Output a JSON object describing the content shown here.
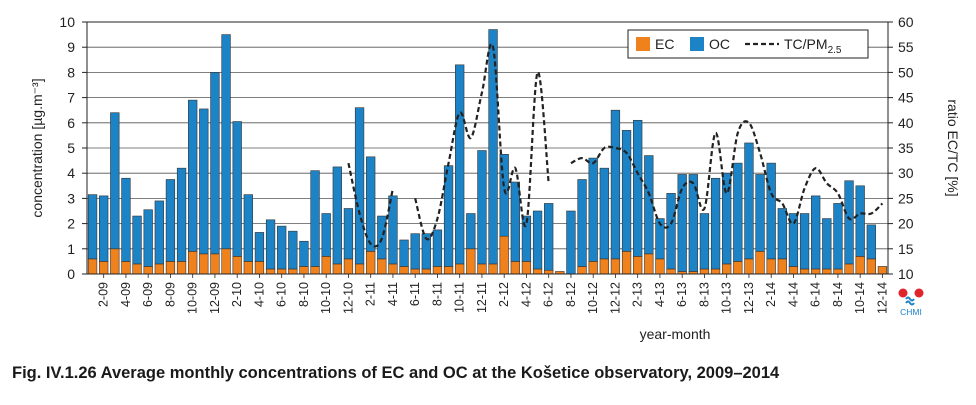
{
  "caption": "Fig. IV.1.26 Average monthly concentrations of EC and OC at the Košetice observatory, 2009–2014",
  "logo_text": "CHMI",
  "chart_data": {
    "type": "bar",
    "stacked": true,
    "xlabel": "year-month",
    "ylabel": "concentration [µg.m⁻³]",
    "y2label": "ratio EC/TC [%]",
    "ylim": [
      0,
      10
    ],
    "y2lim": [
      10,
      60
    ],
    "yticks": [
      0,
      1,
      2,
      3,
      4,
      5,
      6,
      7,
      8,
      9,
      10
    ],
    "y2ticks": [
      10,
      15,
      20,
      25,
      30,
      35,
      40,
      45,
      50,
      55,
      60
    ],
    "grid": true,
    "legend_position": "top-right",
    "categories": [
      "1-09",
      "2-09",
      "3-09",
      "4-09",
      "5-09",
      "6-09",
      "7-09",
      "8-09",
      "9-09",
      "10-09",
      "11-09",
      "12-09",
      "1-10",
      "2-10",
      "3-10",
      "4-10",
      "5-10",
      "6-10",
      "7-10",
      "8-10",
      "9-10",
      "10-10",
      "11-10",
      "12-10",
      "1-11",
      "2-11",
      "3-11",
      "4-11",
      "5-11",
      "6-11",
      "7-11",
      "8-11",
      "9-11",
      "10-11",
      "11-11",
      "12-11",
      "1-12",
      "2-12",
      "3-12",
      "4-12",
      "5-12",
      "6-12",
      "7-12",
      "8-12",
      "9-12",
      "10-12",
      "11-12",
      "12-12",
      "1-13",
      "2-13",
      "3-13",
      "4-13",
      "5-13",
      "6-13",
      "7-13",
      "8-13",
      "9-13",
      "10-13",
      "11-13",
      "12-13",
      "1-14",
      "2-14",
      "3-14",
      "4-14",
      "5-14",
      "6-14",
      "7-14",
      "8-14",
      "9-14",
      "10-14",
      "11-14",
      "12-14"
    ],
    "x_tick_labels": [
      "2-09",
      "4-09",
      "6-09",
      "8-09",
      "10-09",
      "12-09",
      "2-10",
      "4-10",
      "6-10",
      "8-10",
      "10-10",
      "12-10",
      "2-11",
      "4-11",
      "6-11",
      "8-11",
      "10-11",
      "12-11",
      "2-12",
      "4-12",
      "6-12",
      "8-12",
      "10-12",
      "12-12",
      "2-13",
      "4-13",
      "6-13",
      "8-13",
      "10-13",
      "12-13",
      "2-14",
      "4-14",
      "6-14",
      "8-14",
      "10-14",
      "12-14"
    ],
    "series": [
      {
        "name": "EC",
        "color": "#f0821e",
        "values": [
          0.6,
          0.5,
          1.0,
          0.5,
          0.4,
          0.3,
          0.4,
          0.5,
          0.5,
          0.9,
          0.8,
          0.8,
          1.0,
          0.7,
          0.5,
          0.5,
          0.2,
          0.2,
          0.2,
          0.3,
          0.3,
          0.7,
          0.4,
          0.6,
          0.4,
          0.9,
          0.6,
          0.4,
          0.3,
          0.2,
          0.2,
          0.3,
          0.3,
          0.4,
          1.0,
          0.4,
          0.4,
          1.5,
          0.5,
          0.5,
          0.2,
          0.15,
          0.1,
          null,
          0.3,
          0.5,
          0.6,
          0.6,
          0.9,
          0.7,
          0.8,
          0.6,
          0.2,
          0.1,
          0.1,
          0.2,
          0.2,
          0.4,
          0.5,
          0.6,
          0.9,
          0.6,
          0.6,
          0.3,
          0.2,
          0.2,
          0.2,
          0.2,
          0.4,
          0.7,
          0.6,
          0.3
        ]
      },
      {
        "name": "OC",
        "color": "#1c83c6",
        "values": [
          2.55,
          2.6,
          5.4,
          3.3,
          1.9,
          2.25,
          2.5,
          3.25,
          3.7,
          6.0,
          5.75,
          7.2,
          8.5,
          5.35,
          2.65,
          1.15,
          1.95,
          1.7,
          1.5,
          1.0,
          3.8,
          1.7,
          3.85,
          2.0,
          6.2,
          3.75,
          1.7,
          2.7,
          1.05,
          1.4,
          1.4,
          1.45,
          4.0,
          7.9,
          1.4,
          4.5,
          9.3,
          3.25,
          3.15,
          1.8,
          2.3,
          2.65,
          null,
          2.5,
          3.45,
          4.1,
          3.6,
          5.9,
          4.8,
          5.4,
          3.9,
          1.6,
          3.0,
          3.85,
          3.85,
          2.2,
          3.6,
          3.6,
          3.9,
          4.6,
          3.05,
          3.8,
          2.0,
          2.1,
          2.2,
          2.9,
          2.0,
          2.6,
          3.3,
          2.8,
          1.35,
          0.0
        ]
      },
      {
        "name": "TC/PM2.5",
        "style": "dashed",
        "axis": "right",
        "color": "#222222",
        "values": [
          null,
          null,
          null,
          null,
          null,
          null,
          null,
          null,
          null,
          null,
          null,
          null,
          null,
          null,
          null,
          null,
          null,
          null,
          null,
          null,
          null,
          null,
          null,
          32,
          22,
          16,
          17,
          27,
          null,
          25,
          17,
          21,
          32,
          42,
          37,
          46,
          55,
          27,
          31,
          20,
          50,
          28,
          null,
          32,
          33,
          32,
          35,
          35,
          34,
          30,
          26,
          20,
          20,
          27,
          28,
          23,
          38,
          26,
          38,
          40,
          34,
          26,
          24,
          20,
          27,
          31,
          28,
          26,
          21,
          22,
          22,
          24
        ]
      }
    ]
  }
}
